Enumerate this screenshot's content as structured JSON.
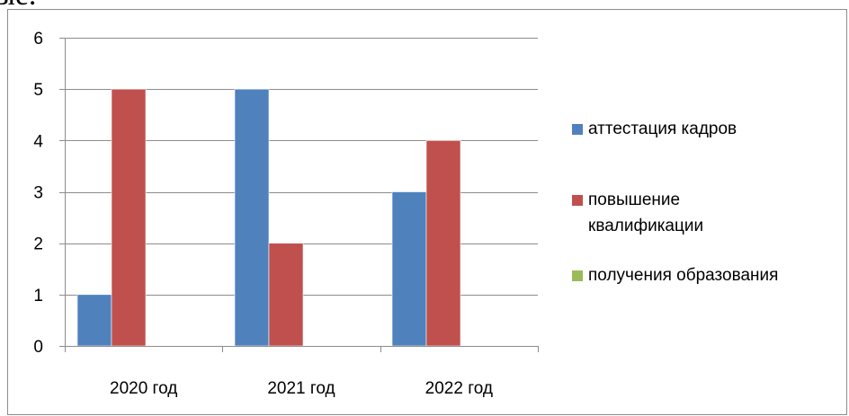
{
  "page": {
    "cut_text": "ые."
  },
  "chart_data": {
    "type": "bar",
    "categories": [
      "2020 год",
      "2021 год",
      "2022 год"
    ],
    "series": [
      {
        "name": "аттестация кадров",
        "values": [
          1,
          5,
          3
        ],
        "color": "#4f81bd"
      },
      {
        "name": "повышение квалификации",
        "values": [
          5,
          2,
          4
        ],
        "color": "#c0504d"
      },
      {
        "name": "получения образования",
        "values": [
          0,
          0,
          0
        ],
        "color": "#9bbb59"
      }
    ],
    "ylim": [
      0,
      6
    ],
    "yticks": [
      0,
      1,
      2,
      3,
      4,
      5,
      6
    ],
    "grid": true,
    "legend_position": "right",
    "legend_labels": [
      [
        "аттестация кадров"
      ],
      [
        "повышение",
        "квалификации"
      ],
      [
        "получения образования"
      ]
    ]
  }
}
